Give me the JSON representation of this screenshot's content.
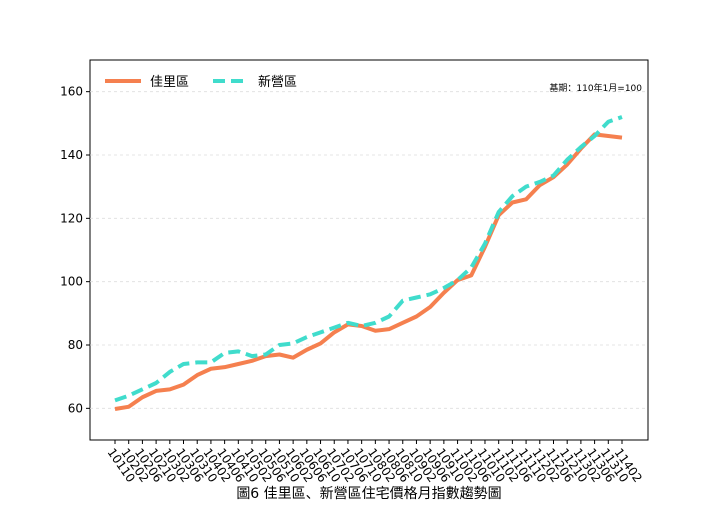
{
  "chart_data": {
    "type": "line",
    "title": "圖6 佳里區、新營區住宅價格月指數趨勢圖",
    "annotation": "基期：110年1月=100",
    "categories": [
      "10110",
      "10202",
      "10206",
      "10210",
      "10302",
      "10306",
      "10310",
      "10402",
      "10406",
      "10410",
      "10502",
      "10506",
      "10510",
      "10602",
      "10606",
      "10610",
      "10702",
      "10706",
      "10710",
      "10802",
      "10806",
      "10810",
      "10902",
      "10906",
      "10910",
      "11002",
      "11006",
      "11010",
      "11102",
      "11106",
      "11110",
      "11202",
      "11206",
      "11210",
      "11302",
      "11306",
      "11310",
      "11402"
    ],
    "series": [
      {
        "name": "佳里區",
        "color": "#f5804f",
        "dashed": false,
        "values": [
          59.8,
          60.5,
          63.5,
          65.5,
          66,
          67.5,
          70.5,
          72.5,
          73,
          74,
          75,
          76.5,
          77,
          76,
          78.5,
          80.5,
          84,
          86.5,
          86,
          84.5,
          85,
          87,
          89,
          92,
          96.5,
          100.5,
          102,
          111,
          121,
          125,
          126,
          130.5,
          133,
          137,
          142,
          146.5,
          146,
          145.5
        ]
      },
      {
        "name": "新營區",
        "color": "#40dccc",
        "dashed": true,
        "values": [
          62.5,
          64,
          66,
          68,
          71.5,
          74,
          74.5,
          74.5,
          77.5,
          78,
          76.5,
          77,
          80,
          80.5,
          82.5,
          84,
          85.5,
          87,
          86,
          87,
          89,
          94,
          95,
          96,
          98,
          100.5,
          104.5,
          112,
          122,
          127,
          130,
          131.5,
          133.5,
          138.5,
          142.5,
          146,
          150.5,
          152
        ]
      }
    ],
    "ylim": [
      50,
      170
    ],
    "yticks": [
      60,
      80,
      100,
      120,
      140,
      160
    ],
    "grid": true,
    "legend": "upper left"
  }
}
